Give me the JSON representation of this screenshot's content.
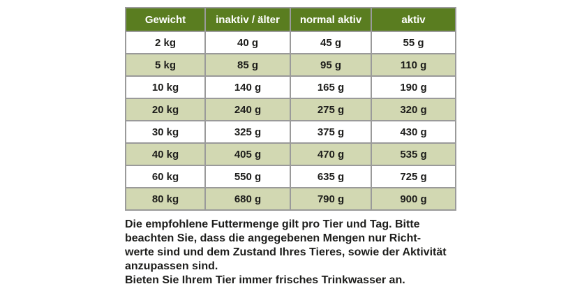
{
  "table": {
    "headers": [
      "Gewicht",
      "inaktiv / älter",
      "normal aktiv",
      "aktiv"
    ],
    "rows": [
      {
        "cells": [
          "2 kg",
          "40 g",
          "45 g",
          "55 g"
        ]
      },
      {
        "cells": [
          "5 kg",
          "85 g",
          "95 g",
          "110 g"
        ]
      },
      {
        "cells": [
          "10 kg",
          "140 g",
          "165 g",
          "190 g"
        ]
      },
      {
        "cells": [
          "20 kg",
          "240 g",
          "275 g",
          "320 g"
        ]
      },
      {
        "cells": [
          "30 kg",
          "325 g",
          "375 g",
          "430 g"
        ]
      },
      {
        "cells": [
          "40 kg",
          "405 g",
          "470 g",
          "535 g"
        ]
      },
      {
        "cells": [
          "60 kg",
          "550 g",
          "635 g",
          "725 g"
        ]
      },
      {
        "cells": [
          "80 kg",
          "680 g",
          "790 g",
          "900 g"
        ]
      }
    ]
  },
  "notes": {
    "lines": [
      "Die empfohlene Futtermenge gilt pro Tier und Tag. Bitte",
      "beachten Sie, dass die angegebenen Mengen nur Richt-",
      "werte sind und dem Zustand Ihres Tieres, sowie der Aktivität",
      "anzupassen sind.",
      "Bieten Sie Ihrem Tier immer frisches Trinkwasser an."
    ]
  },
  "colors": {
    "header_background": "#5a7d20",
    "header_text": "#ffffff",
    "row_alternate_background": "#d2d8b2",
    "row_background": "#ffffff",
    "grid_border": "#9a9a9a",
    "body_text": "#1d1d1b",
    "page_background": "#ffffff"
  }
}
